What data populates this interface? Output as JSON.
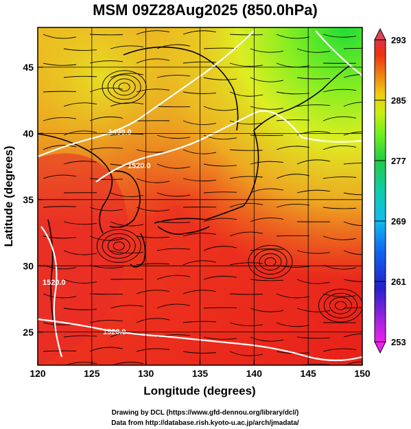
{
  "title": "MSM 09Z28Aug2025 (850.0hPa)",
  "xlabel": "Longitude (degrees)",
  "ylabel": "Latitude  (degrees)",
  "x_ticks": [
    "120",
    "125",
    "130",
    "135",
    "140",
    "145",
    "150"
  ],
  "y_ticks": [
    "25",
    "30",
    "35",
    "40",
    "45"
  ],
  "colorbar": {
    "labels": [
      "293",
      "285",
      "277",
      "269",
      "261",
      "253"
    ],
    "min": 253,
    "max": 293,
    "colors_bottom_to_top": [
      "#ee22ee",
      "#6622dd",
      "#1133cc",
      "#1177ee",
      "#11bbee",
      "#11ddbb",
      "#22cc55",
      "#66ee22",
      "#ccee11",
      "#eecc11",
      "#ee7711",
      "#ee2211",
      "#dd3344"
    ]
  },
  "contour_labels": [
    "1490.0",
    "1520.0",
    "1520.0",
    "1520.0"
  ],
  "credits": {
    "line1": "Drawing by DCL (https://www.gfd-dennou.org/library/dcl/)",
    "line2": "Data from http://database.rish.kyoto-u.ac.jp/arch/jmadata/"
  },
  "map_extent": {
    "lon": [
      120,
      150
    ],
    "lat": [
      22.5,
      48
    ]
  }
}
